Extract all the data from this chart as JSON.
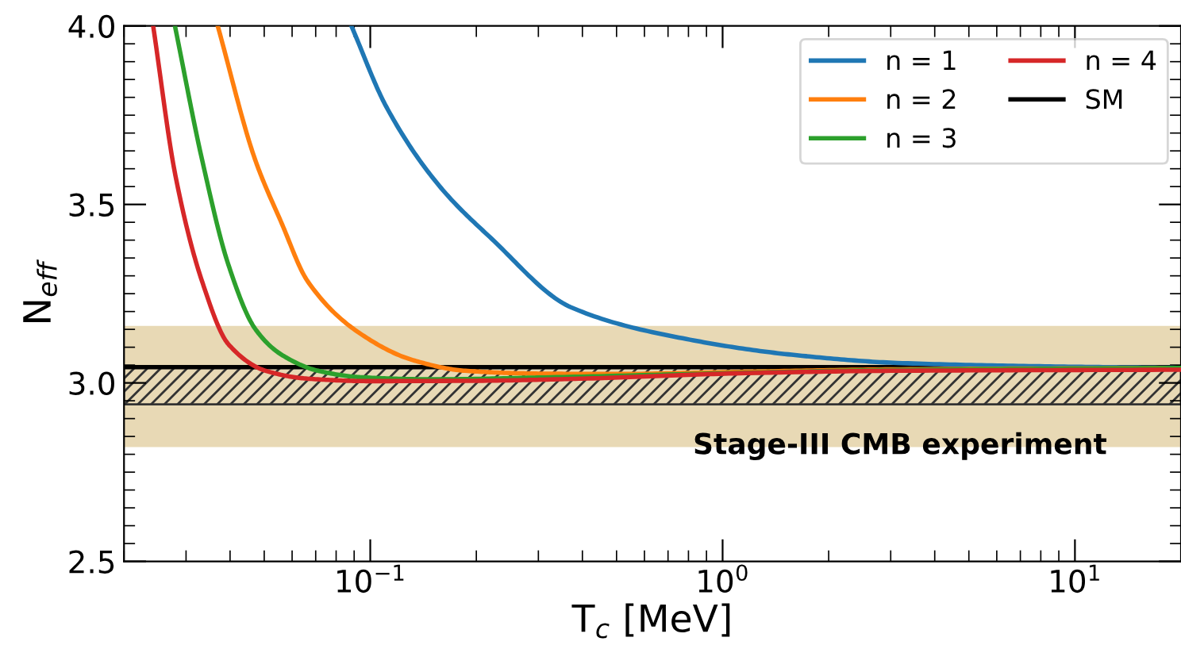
{
  "chart_data": {
    "type": "line",
    "xlabel": "T$_{c}$ [MeV]",
    "ylabel": "N$_{eff}$",
    "log": "x",
    "xlim": [
      0.02,
      20
    ],
    "ylim": [
      2.5,
      4.0
    ],
    "xticks": [
      {
        "value": 0.1,
        "label": "10$^{−1}$"
      },
      {
        "value": 1,
        "label": "10$^{0}$"
      },
      {
        "value": 10,
        "label": "10$^{1}$"
      }
    ],
    "yticks": [
      2.5,
      {
        "value": 3.0,
        "label": "3.0"
      },
      3.5,
      {
        "value": 4.0,
        "label": "4.0"
      }
    ],
    "grid": false,
    "legend": "top right",
    "series": [
      {
        "name": "n = 1",
        "color": "#1f77b4",
        "x": [
          0.0884,
          0.111,
          0.157,
          0.221,
          0.371,
          0.789,
          1.57,
          3.13,
          8.8,
          20
        ],
        "values": [
          4.0,
          3.774,
          3.552,
          3.404,
          3.212,
          3.123,
          3.079,
          3.056,
          3.046,
          3.042
        ]
      },
      {
        "name": "n = 2",
        "color": "#ff7f0e",
        "x": [
          0.0369,
          0.0471,
          0.056,
          0.0664,
          0.0937,
          0.132,
          0.186,
          0.3,
          0.5,
          1.0,
          3.0,
          20
        ],
        "values": [
          4.0,
          3.626,
          3.448,
          3.285,
          3.138,
          3.064,
          3.034,
          3.026,
          3.025,
          3.03,
          3.038,
          3.042
        ]
      },
      {
        "name": "n = 3",
        "color": "#2ca02c",
        "x": [
          0.0279,
          0.0333,
          0.0396,
          0.0471,
          0.056,
          0.0711,
          0.0937,
          0.15,
          0.3,
          1.0,
          3.0,
          20
        ],
        "values": [
          4.0,
          3.626,
          3.33,
          3.152,
          3.079,
          3.034,
          3.016,
          3.01,
          3.015,
          3.027,
          3.036,
          3.042
        ]
      },
      {
        "name": "n = 4",
        "color": "#d62728",
        "x": [
          0.0242,
          0.028,
          0.0333,
          0.0396,
          0.0505,
          0.0662,
          0.1,
          0.2,
          0.4,
          1.12,
          3.0,
          20
        ],
        "values": [
          4.0,
          3.58,
          3.285,
          3.108,
          3.034,
          3.012,
          3.005,
          3.006,
          3.012,
          3.027,
          3.034,
          3.037
        ]
      }
    ],
    "ref_lines": [
      {
        "axis": "y",
        "value": 3.044,
        "label": "SM",
        "color": "#000000",
        "line_style": "solid"
      }
    ],
    "bands": [
      {
        "axis": "y",
        "from": 2.82,
        "to": 3.16,
        "color": "#e8d9b5"
      },
      {
        "axis": "y",
        "from": 2.94,
        "to": 3.044,
        "color": "#333333"
      }
    ],
    "annotations": [
      "Stage-III CMB experiment"
    ]
  }
}
